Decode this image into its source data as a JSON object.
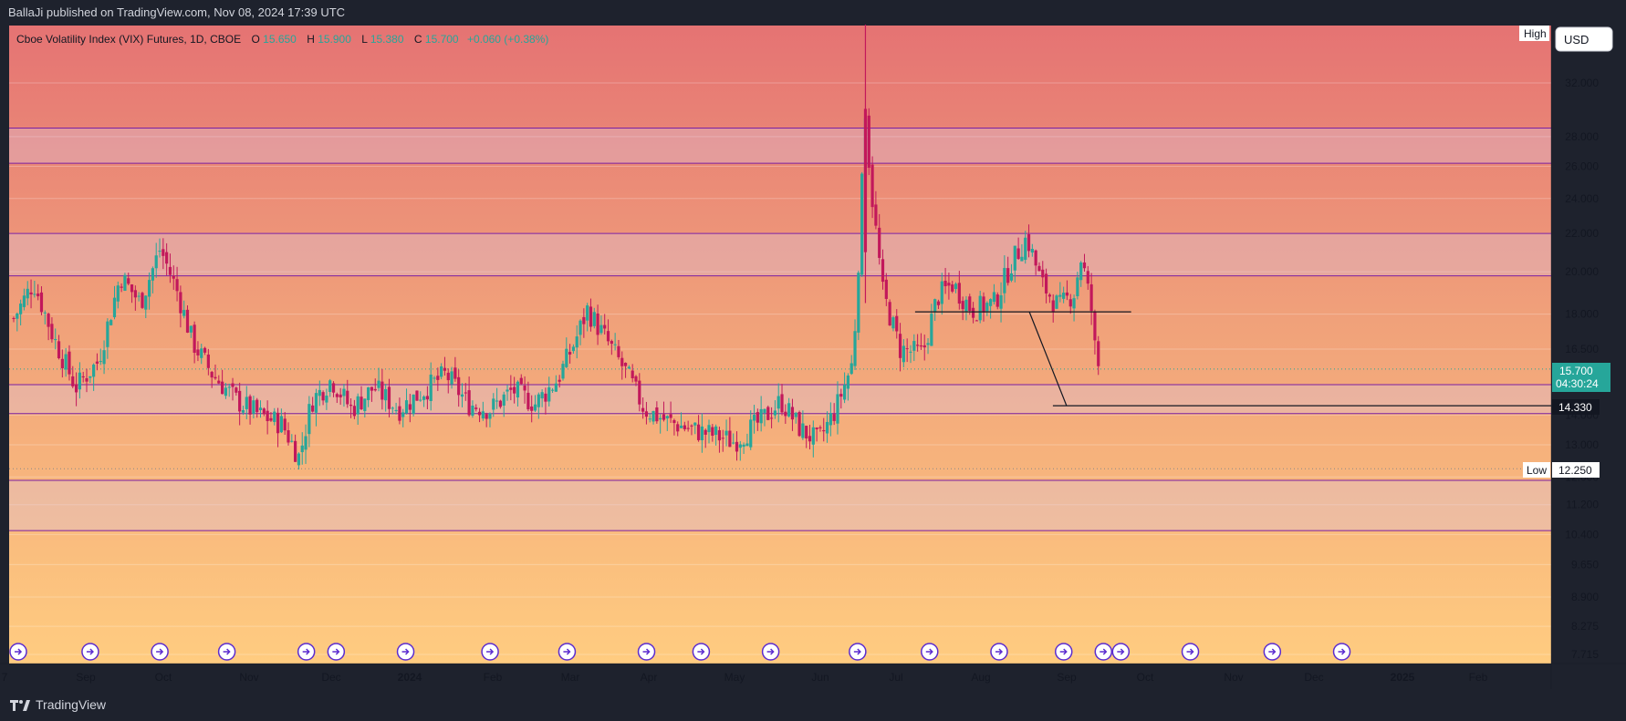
{
  "header": {
    "publish_line": "BallaJi published on TradingView.com, Nov 08, 2024 17:39 UTC"
  },
  "footer": {
    "brand": "TradingView"
  },
  "legend": {
    "symbol": "Cboe Volatility Index (VIX) Futures, 1D, CBOE",
    "o_label": "O",
    "o_value": "15.650",
    "h_label": "H",
    "h_value": "15.900",
    "l_label": "L",
    "l_value": "15.380",
    "c_label": "C",
    "c_value": "15.700",
    "change": "+0.060 (+0.38%)"
  },
  "currency": "USD",
  "badges": {
    "high_label": "High",
    "low_label": "Low",
    "low_value": "12.250",
    "last_price": "15.700",
    "countdown": "04:30:24",
    "target_price": "14.330"
  },
  "colors": {
    "up": "#26a69a",
    "down": "#c2185b",
    "zone_line": "#7b1fa2",
    "bg_top": "#e57373",
    "bg_bottom": "#ffcc80",
    "price_badge": "#26a69a"
  },
  "chart_data": {
    "type": "candlestick",
    "y_scale": "log",
    "ylim": [
      7.5,
      38
    ],
    "y_ticks": [
      "32.000",
      "28.000",
      "26.000",
      "24.000",
      "22.000",
      "20.000",
      "18.000",
      "16.500",
      "14.000",
      "13.000",
      "12.000",
      "11.200",
      "10.400",
      "9.650",
      "8.900",
      "8.275",
      "7.715"
    ],
    "x_labels": [
      "7",
      "Sep",
      "Oct",
      "Nov",
      "Dec",
      "2024",
      "Feb",
      "Mar",
      "Apr",
      "May",
      "Jun",
      "Jul",
      "Aug",
      "Sep",
      "Oct",
      "Nov",
      "Dec",
      "2025",
      "Feb"
    ],
    "zones": [
      [
        26.2,
        28.6
      ],
      [
        19.8,
        22.0
      ],
      [
        14.05,
        15.1
      ],
      [
        10.5,
        11.9
      ]
    ],
    "horizontal_lines": [
      18.1,
      14.33
    ],
    "projection": {
      "from_date": "2024-10-10",
      "from_value": 18.1,
      "to_date": "2024-10-25",
      "to_value": 14.33
    },
    "events_count": 21,
    "path": [
      [
        "2023-08-28",
        17.8
      ],
      [
        "2023-09-05",
        19.5
      ],
      [
        "2023-09-13",
        17.0
      ],
      [
        "2023-09-22",
        15.0
      ],
      [
        "2023-10-01",
        16.0
      ],
      [
        "2023-10-10",
        19.8
      ],
      [
        "2023-10-18",
        18.5
      ],
      [
        "2023-10-26",
        21.2
      ],
      [
        "2023-11-02",
        19.0
      ],
      [
        "2023-11-08",
        16.8
      ],
      [
        "2023-11-16",
        15.5
      ],
      [
        "2023-11-26",
        14.5
      ],
      [
        "2023-12-05",
        14.0
      ],
      [
        "2023-12-14",
        13.7
      ],
      [
        "2023-12-21",
        12.6
      ],
      [
        "2023-12-26",
        14.5
      ],
      [
        "2024-01-03",
        15.3
      ],
      [
        "2024-01-11",
        14.2
      ],
      [
        "2024-01-20",
        15.0
      ],
      [
        "2024-01-30",
        14.2
      ],
      [
        "2024-02-08",
        14.8
      ],
      [
        "2024-02-18",
        15.5
      ],
      [
        "2024-02-27",
        14.4
      ],
      [
        "2024-03-07",
        14.2
      ],
      [
        "2024-03-16",
        14.9
      ],
      [
        "2024-03-25",
        14.4
      ],
      [
        "2024-04-03",
        15.3
      ],
      [
        "2024-04-10",
        16.8
      ],
      [
        "2024-04-15",
        18.2
      ],
      [
        "2024-04-22",
        17.0
      ],
      [
        "2024-05-01",
        15.5
      ],
      [
        "2024-05-08",
        14.2
      ],
      [
        "2024-05-17",
        13.8
      ],
      [
        "2024-05-27",
        13.5
      ],
      [
        "2024-06-06",
        13.3
      ],
      [
        "2024-06-13",
        13.1
      ],
      [
        "2024-06-24",
        13.8
      ],
      [
        "2024-07-02",
        14.5
      ],
      [
        "2024-07-10",
        13.5
      ],
      [
        "2024-07-17",
        13.1
      ],
      [
        "2024-07-24",
        14.2
      ],
      [
        "2024-07-31",
        16.0
      ],
      [
        "2024-08-02",
        20.0
      ],
      [
        "2024-08-05",
        30.0
      ],
      [
        "2024-08-07",
        25.0
      ],
      [
        "2024-08-12",
        19.0
      ],
      [
        "2024-08-19",
        16.5
      ],
      [
        "2024-08-28",
        16.3
      ],
      [
        "2024-09-03",
        18.8
      ],
      [
        "2024-09-09",
        19.4
      ],
      [
        "2024-09-17",
        18.2
      ],
      [
        "2024-09-26",
        18.5
      ],
      [
        "2024-10-03",
        20.5
      ],
      [
        "2024-10-09",
        21.8
      ],
      [
        "2024-10-15",
        19.4
      ],
      [
        "2024-10-22",
        18.3
      ],
      [
        "2024-10-28",
        19.0
      ],
      [
        "2024-10-31",
        20.8
      ],
      [
        "2024-11-04",
        18.2
      ],
      [
        "2024-11-06",
        15.9
      ],
      [
        "2024-11-08",
        15.7
      ]
    ],
    "annotations": [
      "High",
      "Low",
      "15.700",
      "04:30:24",
      "14.330",
      "12.250"
    ]
  }
}
